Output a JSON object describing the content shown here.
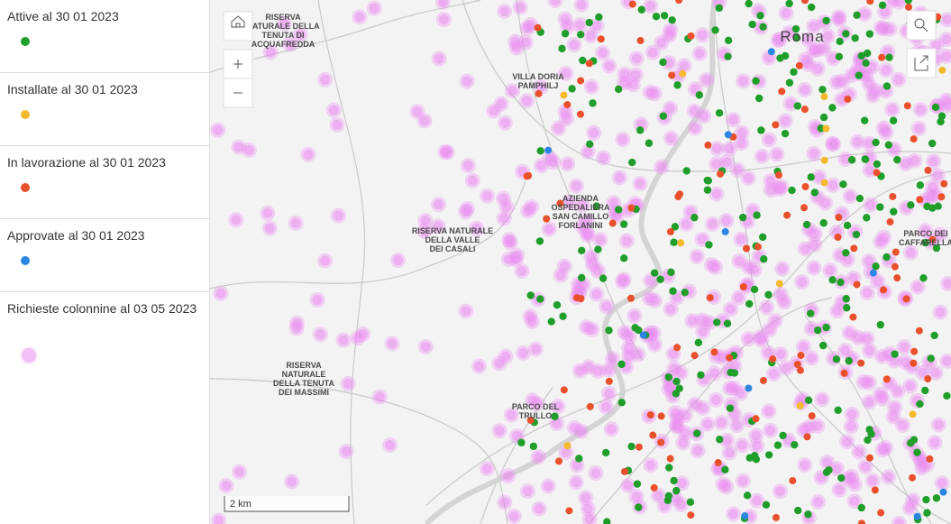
{
  "legend": {
    "items": [
      {
        "label": "Attive al 30 01 2023",
        "color": "#1f9e2a"
      },
      {
        "label": "Installate al 30 01 2023",
        "color": "#f5b92e"
      },
      {
        "label": "In lavorazione al 30 01 2023",
        "color": "#e9502b"
      },
      {
        "label": "Approvate al 30 01 2023",
        "color": "#2b86e3"
      },
      {
        "label": "Richieste colonnine al 03 05 2023",
        "color": "#ea8ef2"
      }
    ]
  },
  "map": {
    "city": "Roma",
    "scale": "2 km",
    "labels": [
      {
        "lines": [
          "RISERVA",
          "NATURALE DELLA",
          "TENUTA DI",
          "ACQUAFREDDA"
        ]
      },
      {
        "lines": [
          "VILLA DORIA",
          "PAMPHILJ"
        ]
      },
      {
        "lines": [
          "AZIENDA",
          "OSPEDALIERA",
          "SAN CAMILLO",
          "FORLANINI"
        ]
      },
      {
        "lines": [
          "RISERVA NATURALE",
          "DELLA VALLE",
          "DEI CASALI"
        ]
      },
      {
        "lines": [
          "RISERVA",
          "NATURALE",
          "DELLA TENUTA",
          "DEI MASSIMI"
        ]
      },
      {
        "lines": [
          "PARCO DEL",
          "TRULLO"
        ]
      },
      {
        "lines": [
          "PARCO DEI",
          "CAFFARELLA"
        ]
      }
    ]
  }
}
